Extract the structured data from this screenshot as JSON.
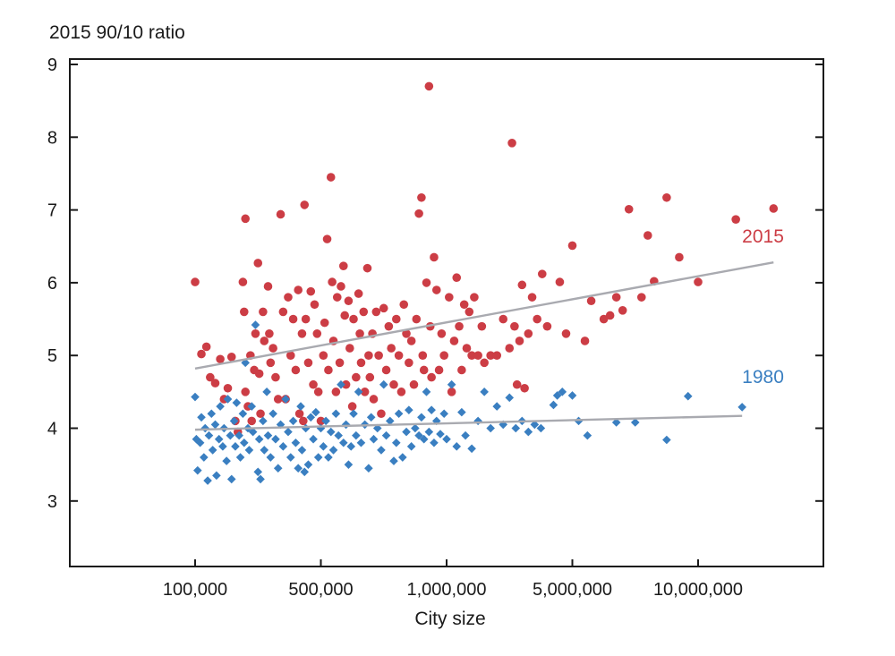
{
  "chart_data": {
    "type": "scatter",
    "title": "",
    "ylabel": "2015 90/10 ratio",
    "xlabel": "City size",
    "x_scale": "categorical-log",
    "x_ticks": [
      {
        "label": "100,000",
        "pos": 0
      },
      {
        "label": "500,000",
        "pos": 1
      },
      {
        "label": "1,000,000",
        "pos": 2
      },
      {
        "label": "5,000,000",
        "pos": 3
      },
      {
        "label": "10,000,000",
        "pos": 4
      }
    ],
    "xlim": [
      -1,
      5
    ],
    "ylim": [
      2,
      9
    ],
    "y_ticks": [
      3,
      4,
      5,
      6,
      7,
      8,
      9
    ],
    "grid": false,
    "colors": {
      "s2015": "#cc3d45",
      "s1980": "#3a7fc1",
      "trend": "#a9aab0",
      "axis": "#1a1a1a"
    },
    "series": [
      {
        "name": "2015",
        "marker": "circle",
        "label_pos": {
          "x": 4.35,
          "y": 6.55
        },
        "trend": {
          "x": [
            0,
            4.6
          ],
          "y": [
            4.82,
            6.28
          ]
        },
        "points": [
          [
            0,
            6.01
          ],
          [
            0.05,
            5.02
          ],
          [
            0.09,
            5.12
          ],
          [
            0.12,
            4.7
          ],
          [
            0.16,
            4.62
          ],
          [
            0.2,
            4.95
          ],
          [
            0.23,
            4.4
          ],
          [
            0.26,
            4.55
          ],
          [
            0.29,
            4.98
          ],
          [
            0.32,
            4.1
          ],
          [
            0.34,
            3.95
          ],
          [
            0.38,
            6.01
          ],
          [
            0.39,
            5.6
          ],
          [
            0.4,
            4.5
          ],
          [
            0.4,
            6.88
          ],
          [
            0.42,
            4.3
          ],
          [
            0.44,
            5.0
          ],
          [
            0.45,
            4.1
          ],
          [
            0.47,
            4.8
          ],
          [
            0.48,
            5.3
          ],
          [
            0.5,
            6.27
          ],
          [
            0.51,
            4.75
          ],
          [
            0.52,
            4.2
          ],
          [
            0.54,
            5.6
          ],
          [
            0.55,
            5.2
          ],
          [
            0.58,
            5.95
          ],
          [
            0.59,
            5.3
          ],
          [
            0.6,
            4.9
          ],
          [
            0.62,
            5.1
          ],
          [
            0.64,
            4.7
          ],
          [
            0.66,
            4.4
          ],
          [
            0.68,
            6.94
          ],
          [
            0.7,
            5.6
          ],
          [
            0.72,
            4.4
          ],
          [
            0.74,
            5.8
          ],
          [
            0.76,
            5.0
          ],
          [
            0.78,
            5.5
          ],
          [
            0.8,
            4.8
          ],
          [
            0.82,
            5.9
          ],
          [
            0.83,
            4.2
          ],
          [
            0.85,
            5.3
          ],
          [
            0.86,
            4.1
          ],
          [
            0.87,
            7.07
          ],
          [
            0.88,
            5.5
          ],
          [
            0.9,
            4.9
          ],
          [
            0.92,
            5.88
          ],
          [
            0.94,
            4.6
          ],
          [
            0.95,
            5.7
          ],
          [
            0.97,
            5.3
          ],
          [
            0.98,
            4.5
          ],
          [
            1.0,
            4.1
          ],
          [
            1.02,
            5.0
          ],
          [
            1.03,
            5.45
          ],
          [
            1.05,
            6.6
          ],
          [
            1.06,
            4.8
          ],
          [
            1.08,
            7.45
          ],
          [
            1.09,
            6.01
          ],
          [
            1.1,
            5.2
          ],
          [
            1.12,
            4.5
          ],
          [
            1.13,
            5.8
          ],
          [
            1.15,
            4.9
          ],
          [
            1.16,
            5.95
          ],
          [
            1.18,
            6.23
          ],
          [
            1.19,
            5.55
          ],
          [
            1.2,
            4.6
          ],
          [
            1.22,
            5.75
          ],
          [
            1.23,
            5.1
          ],
          [
            1.25,
            4.3
          ],
          [
            1.26,
            5.5
          ],
          [
            1.28,
            4.7
          ],
          [
            1.3,
            5.85
          ],
          [
            1.31,
            5.3
          ],
          [
            1.32,
            4.9
          ],
          [
            1.34,
            5.6
          ],
          [
            1.35,
            4.5
          ],
          [
            1.37,
            6.2
          ],
          [
            1.38,
            5.0
          ],
          [
            1.39,
            4.7
          ],
          [
            1.41,
            5.3
          ],
          [
            1.42,
            4.4
          ],
          [
            1.44,
            5.6
          ],
          [
            1.46,
            5.0
          ],
          [
            1.48,
            4.2
          ],
          [
            1.5,
            5.65
          ],
          [
            1.52,
            4.8
          ],
          [
            1.54,
            5.4
          ],
          [
            1.56,
            5.1
          ],
          [
            1.58,
            4.6
          ],
          [
            1.6,
            5.5
          ],
          [
            1.62,
            5.0
          ],
          [
            1.64,
            4.5
          ],
          [
            1.66,
            5.7
          ],
          [
            1.68,
            5.3
          ],
          [
            1.7,
            4.9
          ],
          [
            1.72,
            5.2
          ],
          [
            1.74,
            4.6
          ],
          [
            1.76,
            5.5
          ],
          [
            1.78,
            6.95
          ],
          [
            1.8,
            7.17
          ],
          [
            1.81,
            5.0
          ],
          [
            1.82,
            4.8
          ],
          [
            1.84,
            6.0
          ],
          [
            1.86,
            8.7
          ],
          [
            1.87,
            5.4
          ],
          [
            1.88,
            4.7
          ],
          [
            1.9,
            6.35
          ],
          [
            1.92,
            5.9
          ],
          [
            1.94,
            4.8
          ],
          [
            1.96,
            5.3
          ],
          [
            1.98,
            5.0
          ],
          [
            2.02,
            5.8
          ],
          [
            2.04,
            4.5
          ],
          [
            2.06,
            5.2
          ],
          [
            2.08,
            6.07
          ],
          [
            2.1,
            5.4
          ],
          [
            2.12,
            4.8
          ],
          [
            2.14,
            5.7
          ],
          [
            2.16,
            5.1
          ],
          [
            2.18,
            5.6
          ],
          [
            2.2,
            5.0
          ],
          [
            2.22,
            5.8
          ],
          [
            2.25,
            5.0
          ],
          [
            2.28,
            5.4
          ],
          [
            2.3,
            4.9
          ],
          [
            2.35,
            5.0
          ],
          [
            2.4,
            5.0
          ],
          [
            2.45,
            5.5
          ],
          [
            2.5,
            5.1
          ],
          [
            2.52,
            7.92
          ],
          [
            2.54,
            5.4
          ],
          [
            2.56,
            4.6
          ],
          [
            2.58,
            5.2
          ],
          [
            2.6,
            5.97
          ],
          [
            2.62,
            4.55
          ],
          [
            2.65,
            5.3
          ],
          [
            2.68,
            5.8
          ],
          [
            2.72,
            5.5
          ],
          [
            2.76,
            6.12
          ],
          [
            2.8,
            5.4
          ],
          [
            2.9,
            6.01
          ],
          [
            2.95,
            5.3
          ],
          [
            3.0,
            6.51
          ],
          [
            3.1,
            5.2
          ],
          [
            3.15,
            5.75
          ],
          [
            3.25,
            5.5
          ],
          [
            3.3,
            5.55
          ],
          [
            3.35,
            5.8
          ],
          [
            3.4,
            5.62
          ],
          [
            3.45,
            7.01
          ],
          [
            3.55,
            5.8
          ],
          [
            3.6,
            6.65
          ],
          [
            3.65,
            6.02
          ],
          [
            3.75,
            7.17
          ],
          [
            3.85,
            6.35
          ],
          [
            4.0,
            6.01
          ],
          [
            4.3,
            6.87
          ],
          [
            4.6,
            7.02
          ]
        ]
      },
      {
        "name": "1980",
        "marker": "diamond",
        "label_pos": {
          "x": 4.35,
          "y": 4.62
        },
        "trend": {
          "x": [
            0,
            4.35
          ],
          "y": [
            3.98,
            4.17
          ]
        },
        "points": [
          [
            0,
            4.43
          ],
          [
            0.01,
            3.85
          ],
          [
            0.02,
            3.42
          ],
          [
            0.04,
            3.8
          ],
          [
            0.05,
            4.15
          ],
          [
            0.07,
            3.6
          ],
          [
            0.08,
            4.0
          ],
          [
            0.1,
            3.28
          ],
          [
            0.11,
            3.9
          ],
          [
            0.13,
            4.2
          ],
          [
            0.14,
            3.7
          ],
          [
            0.16,
            4.05
          ],
          [
            0.17,
            3.35
          ],
          [
            0.19,
            3.85
          ],
          [
            0.2,
            4.3
          ],
          [
            0.22,
            3.75
          ],
          [
            0.23,
            4.0
          ],
          [
            0.25,
            3.55
          ],
          [
            0.26,
            4.4
          ],
          [
            0.28,
            3.9
          ],
          [
            0.29,
            3.3
          ],
          [
            0.31,
            4.1
          ],
          [
            0.32,
            3.75
          ],
          [
            0.33,
            4.35
          ],
          [
            0.35,
            3.9
          ],
          [
            0.36,
            3.6
          ],
          [
            0.38,
            4.2
          ],
          [
            0.39,
            3.8
          ],
          [
            0.4,
            4.9
          ],
          [
            0.42,
            4.0
          ],
          [
            0.43,
            3.7
          ],
          [
            0.45,
            4.3
          ],
          [
            0.46,
            3.95
          ],
          [
            0.48,
            5.42
          ],
          [
            0.5,
            3.4
          ],
          [
            0.51,
            3.85
          ],
          [
            0.52,
            3.3
          ],
          [
            0.54,
            4.1
          ],
          [
            0.55,
            3.7
          ],
          [
            0.57,
            4.5
          ],
          [
            0.58,
            3.9
          ],
          [
            0.6,
            3.6
          ],
          [
            0.62,
            4.2
          ],
          [
            0.64,
            3.85
          ],
          [
            0.66,
            3.45
          ],
          [
            0.68,
            4.05
          ],
          [
            0.7,
            3.75
          ],
          [
            0.72,
            4.4
          ],
          [
            0.74,
            3.95
          ],
          [
            0.76,
            3.6
          ],
          [
            0.78,
            4.1
          ],
          [
            0.8,
            3.8
          ],
          [
            0.82,
            3.45
          ],
          [
            0.84,
            4.3
          ],
          [
            0.85,
            3.7
          ],
          [
            0.87,
            3.4
          ],
          [
            0.88,
            4.0
          ],
          [
            0.9,
            3.5
          ],
          [
            0.92,
            4.15
          ],
          [
            0.94,
            3.85
          ],
          [
            0.96,
            4.22
          ],
          [
            0.98,
            3.6
          ],
          [
            1.0,
            4.0
          ],
          [
            1.02,
            3.75
          ],
          [
            1.04,
            4.1
          ],
          [
            1.06,
            3.6
          ],
          [
            1.08,
            3.95
          ],
          [
            1.1,
            3.7
          ],
          [
            1.12,
            4.2
          ],
          [
            1.14,
            3.9
          ],
          [
            1.16,
            4.6
          ],
          [
            1.18,
            3.8
          ],
          [
            1.2,
            4.05
          ],
          [
            1.22,
            3.5
          ],
          [
            1.24,
            3.75
          ],
          [
            1.26,
            4.2
          ],
          [
            1.28,
            3.9
          ],
          [
            1.3,
            4.5
          ],
          [
            1.32,
            3.8
          ],
          [
            1.35,
            4.05
          ],
          [
            1.38,
            3.45
          ],
          [
            1.4,
            4.15
          ],
          [
            1.42,
            3.85
          ],
          [
            1.45,
            4.0
          ],
          [
            1.48,
            3.7
          ],
          [
            1.5,
            4.6
          ],
          [
            1.52,
            3.9
          ],
          [
            1.55,
            4.1
          ],
          [
            1.58,
            3.55
          ],
          [
            1.6,
            3.8
          ],
          [
            1.62,
            4.2
          ],
          [
            1.65,
            3.6
          ],
          [
            1.68,
            3.95
          ],
          [
            1.7,
            4.25
          ],
          [
            1.72,
            3.75
          ],
          [
            1.75,
            4.0
          ],
          [
            1.78,
            3.9
          ],
          [
            1.8,
            4.15
          ],
          [
            1.82,
            3.85
          ],
          [
            1.84,
            4.5
          ],
          [
            1.86,
            3.95
          ],
          [
            1.88,
            4.25
          ],
          [
            1.9,
            3.8
          ],
          [
            1.92,
            4.1
          ],
          [
            1.95,
            3.92
          ],
          [
            1.98,
            4.2
          ],
          [
            2.0,
            3.85
          ],
          [
            2.04,
            4.6
          ],
          [
            2.08,
            3.75
          ],
          [
            2.12,
            4.22
          ],
          [
            2.15,
            3.9
          ],
          [
            2.2,
            3.72
          ],
          [
            2.25,
            4.1
          ],
          [
            2.3,
            4.5
          ],
          [
            2.35,
            4.0
          ],
          [
            2.4,
            4.3
          ],
          [
            2.45,
            4.05
          ],
          [
            2.5,
            4.42
          ],
          [
            2.55,
            4.0
          ],
          [
            2.6,
            4.1
          ],
          [
            2.65,
            3.95
          ],
          [
            2.7,
            4.05
          ],
          [
            2.75,
            4.0
          ],
          [
            2.85,
            4.32
          ],
          [
            2.88,
            4.45
          ],
          [
            2.92,
            4.5
          ],
          [
            3.0,
            4.45
          ],
          [
            3.05,
            4.1
          ],
          [
            3.12,
            3.9
          ],
          [
            3.35,
            4.08
          ],
          [
            3.5,
            4.08
          ],
          [
            3.75,
            3.84
          ],
          [
            3.92,
            4.44
          ],
          [
            4.35,
            4.29
          ]
        ]
      }
    ]
  }
}
